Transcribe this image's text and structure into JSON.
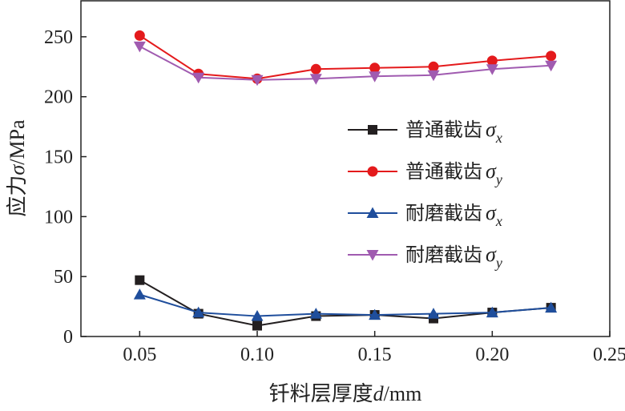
{
  "chart_data": {
    "type": "line",
    "xlabel": {
      "prefix": "钎料层厚度",
      "var": "d",
      "suffix": "/mm"
    },
    "ylabel": {
      "prefix": "应力",
      "var": "σ",
      "suffix": "/MPa"
    },
    "xlim": [
      0.025,
      0.25
    ],
    "ylim": [
      0,
      280
    ],
    "x_ticks": [
      0.05,
      0.1,
      0.15,
      0.2,
      0.25
    ],
    "x_tick_labels": [
      "0.05",
      "0.10",
      "0.15",
      "0.20",
      "0.25"
    ],
    "y_ticks": [
      0,
      50,
      100,
      150,
      200,
      250
    ],
    "y_tick_labels": [
      "0",
      "50",
      "100",
      "150",
      "200",
      "250"
    ],
    "grid": false,
    "legend_position": "right-middle",
    "x": [
      0.05,
      0.075,
      0.1,
      0.125,
      0.15,
      0.175,
      0.2,
      0.225
    ],
    "series": [
      {
        "name": "普通截齿σx",
        "label": "普通截齿",
        "sym": "σ",
        "sub": "x",
        "color": "#231f20",
        "marker": "square",
        "values": [
          47,
          19,
          9,
          17,
          18,
          15,
          20,
          24
        ]
      },
      {
        "name": "普通截齿σy",
        "label": "普通截齿",
        "sym": "σ",
        "sub": "y",
        "color": "#e41a1c",
        "marker": "circle",
        "values": [
          251,
          219,
          215,
          223,
          224,
          225,
          230,
          234
        ]
      },
      {
        "name": "耐磨截齿σx",
        "label": "耐磨截齿",
        "sym": "σ",
        "sub": "x",
        "color": "#1f4e9c",
        "marker": "triangle-up",
        "values": [
          35,
          20,
          17,
          19,
          18,
          19,
          20,
          24
        ]
      },
      {
        "name": "耐磨截齿σy",
        "label": "耐磨截齿",
        "sym": "σ",
        "sub": "y",
        "color": "#a05bb0",
        "marker": "triangle-down",
        "values": [
          242,
          216,
          214,
          215,
          217,
          218,
          223,
          226
        ]
      }
    ]
  }
}
